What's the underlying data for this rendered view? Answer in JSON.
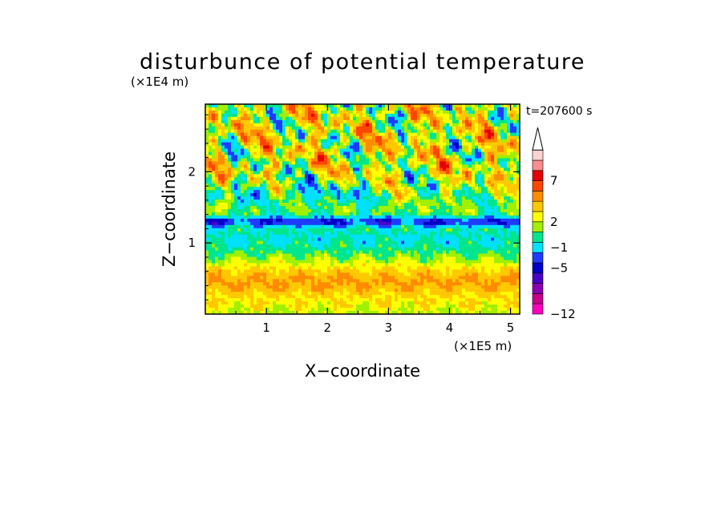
{
  "chart_data": {
    "type": "heatmap",
    "title": "disturbunce of potential temperature",
    "time_label": "t=207600 s",
    "xlabel": "X−coordinate",
    "ylabel": "Z−coordinate",
    "x_unit": "(×1E5 m)",
    "y_unit": "(×1E4 m)",
    "xlim": [
      0,
      5.15
    ],
    "ylim": [
      0,
      2.95
    ],
    "x_ticks": [
      "1",
      "2",
      "3",
      "4",
      "5"
    ],
    "y_ticks": [
      "1",
      "2"
    ],
    "colorbar": {
      "labels": [
        "7",
        "2",
        "−1",
        "−5",
        "−12"
      ],
      "colors": [
        "#ff00bf",
        "#c8008c",
        "#8c00b4",
        "#4b00c8",
        "#0000c8",
        "#1e3cff",
        "#00e1ff",
        "#00e68c",
        "#a0f000",
        "#ffff00",
        "#ffc800",
        "#ff8c00",
        "#ff4600",
        "#e60000",
        "#ff8c8c",
        "#ffd2d2"
      ]
    },
    "layers": [
      {
        "z_range": [
          0.0,
          0.2
        ],
        "description": "green/yellow mix"
      },
      {
        "z_range": [
          0.2,
          0.75
        ],
        "description": "yellow/orange positive anomaly"
      },
      {
        "z_range": [
          0.75,
          0.95
        ],
        "description": "green/cyan"
      },
      {
        "z_range": [
          0.95,
          1.25
        ],
        "description": "cyan negative"
      },
      {
        "z_range": [
          1.2,
          1.45
        ],
        "description": "blue band"
      },
      {
        "z_range": [
          1.45,
          2.95
        ],
        "description": "mixed orange/yellow/blue wave pattern"
      }
    ]
  }
}
